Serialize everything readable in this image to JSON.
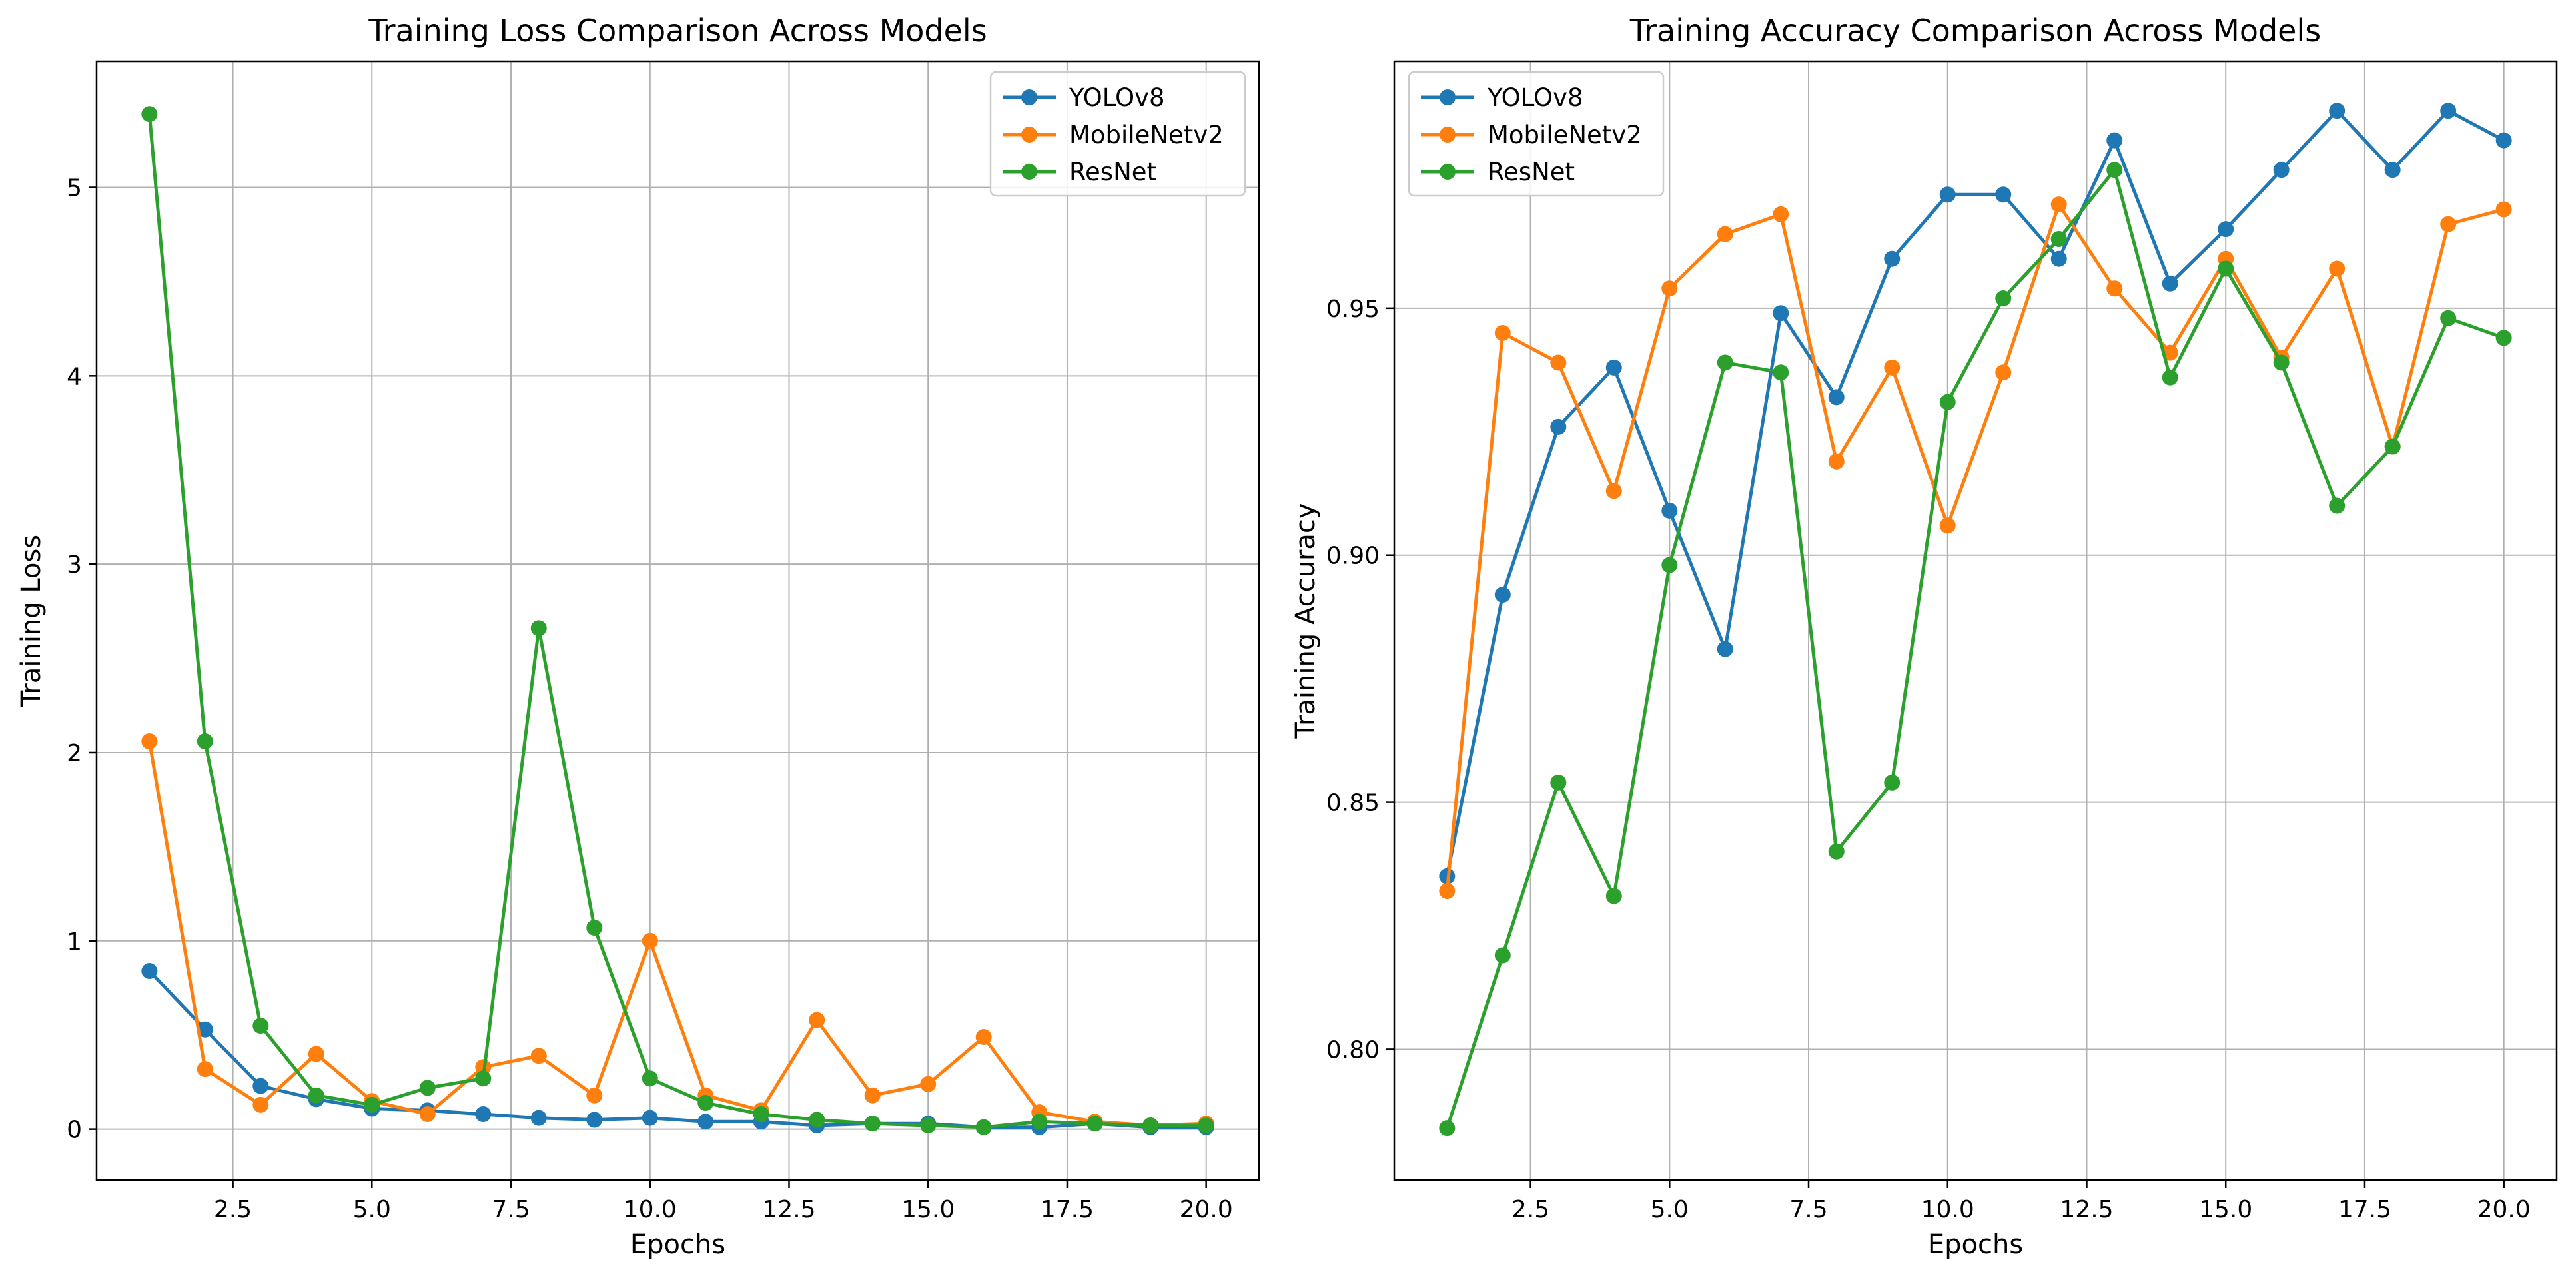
{
  "chart_data": [
    {
      "type": "line",
      "title": "Training Loss Comparison Across Models",
      "xlabel": "Epochs",
      "ylabel": "Training Loss",
      "xlim": [
        0.05,
        20.95
      ],
      "ylim": [
        -0.27,
        5.67
      ],
      "xticks": [
        2.5,
        5.0,
        7.5,
        10.0,
        12.5,
        15.0,
        17.5,
        20.0
      ],
      "xtick_labels": [
        "2.5",
        "5.0",
        "7.5",
        "10.0",
        "12.5",
        "15.0",
        "17.5",
        "20.0"
      ],
      "yticks": [
        0,
        1,
        2,
        3,
        4,
        5
      ],
      "ytick_labels": [
        "0",
        "1",
        "2",
        "3",
        "4",
        "5"
      ],
      "grid": true,
      "legend_position": "top-right",
      "x": [
        1,
        2,
        3,
        4,
        5,
        6,
        7,
        8,
        9,
        10,
        11,
        12,
        13,
        14,
        15,
        16,
        17,
        18,
        19,
        20
      ],
      "series": [
        {
          "name": "YOLOv8",
          "color": "#1f77b4",
          "values": [
            0.84,
            0.53,
            0.23,
            0.16,
            0.11,
            0.1,
            0.08,
            0.06,
            0.05,
            0.06,
            0.04,
            0.04,
            0.02,
            0.03,
            0.03,
            0.01,
            0.01,
            0.03,
            0.01,
            0.01
          ]
        },
        {
          "name": "MobileNetv2",
          "color": "#ff7f0e",
          "values": [
            2.06,
            0.32,
            0.13,
            0.4,
            0.15,
            0.08,
            0.33,
            0.39,
            0.18,
            1.0,
            0.18,
            0.1,
            0.58,
            0.18,
            0.24,
            0.49,
            0.09,
            0.04,
            0.02,
            0.03
          ]
        },
        {
          "name": "ResNet",
          "color": "#2ca02c",
          "values": [
            5.39,
            2.06,
            0.55,
            0.18,
            0.13,
            0.22,
            0.27,
            2.66,
            1.07,
            0.27,
            0.14,
            0.08,
            0.05,
            0.03,
            0.02,
            0.01,
            0.04,
            0.03,
            0.02,
            0.02
          ]
        }
      ]
    },
    {
      "type": "line",
      "title": "Training Accuracy Comparison Across Models",
      "xlabel": "Epochs",
      "ylabel": "Training Accuracy",
      "xlim": [
        0.05,
        20.95
      ],
      "ylim": [
        0.7735,
        1.0
      ],
      "xticks": [
        2.5,
        5.0,
        7.5,
        10.0,
        12.5,
        15.0,
        17.5,
        20.0
      ],
      "xtick_labels": [
        "2.5",
        "5.0",
        "7.5",
        "10.0",
        "12.5",
        "15.0",
        "17.5",
        "20.0"
      ],
      "yticks": [
        0.8,
        0.85,
        0.9,
        0.95
      ],
      "ytick_labels": [
        "0.80",
        "0.85",
        "0.90",
        "0.95"
      ],
      "grid": true,
      "legend_position": "top-left",
      "x": [
        1,
        2,
        3,
        4,
        5,
        6,
        7,
        8,
        9,
        10,
        11,
        12,
        13,
        14,
        15,
        16,
        17,
        18,
        19,
        20
      ],
      "series": [
        {
          "name": "YOLOv8",
          "color": "#1f77b4",
          "values": [
            0.835,
            0.892,
            0.926,
            0.938,
            0.909,
            0.881,
            0.949,
            0.932,
            0.96,
            0.973,
            0.973,
            0.96,
            0.984,
            0.955,
            0.966,
            0.978,
            0.99,
            0.978,
            0.99,
            0.984
          ]
        },
        {
          "name": "MobileNetv2",
          "color": "#ff7f0e",
          "values": [
            0.832,
            0.945,
            0.939,
            0.913,
            0.954,
            0.965,
            0.969,
            0.919,
            0.938,
            0.906,
            0.937,
            0.971,
            0.954,
            0.941,
            0.96,
            0.94,
            0.958,
            0.922,
            0.967,
            0.97
          ]
        },
        {
          "name": "ResNet",
          "color": "#2ca02c",
          "values": [
            0.784,
            0.819,
            0.854,
            0.831,
            0.898,
            0.939,
            0.937,
            0.84,
            0.854,
            0.931,
            0.952,
            0.964,
            0.978,
            0.936,
            0.958,
            0.939,
            0.91,
            0.922,
            0.948,
            0.944
          ]
        }
      ]
    }
  ]
}
